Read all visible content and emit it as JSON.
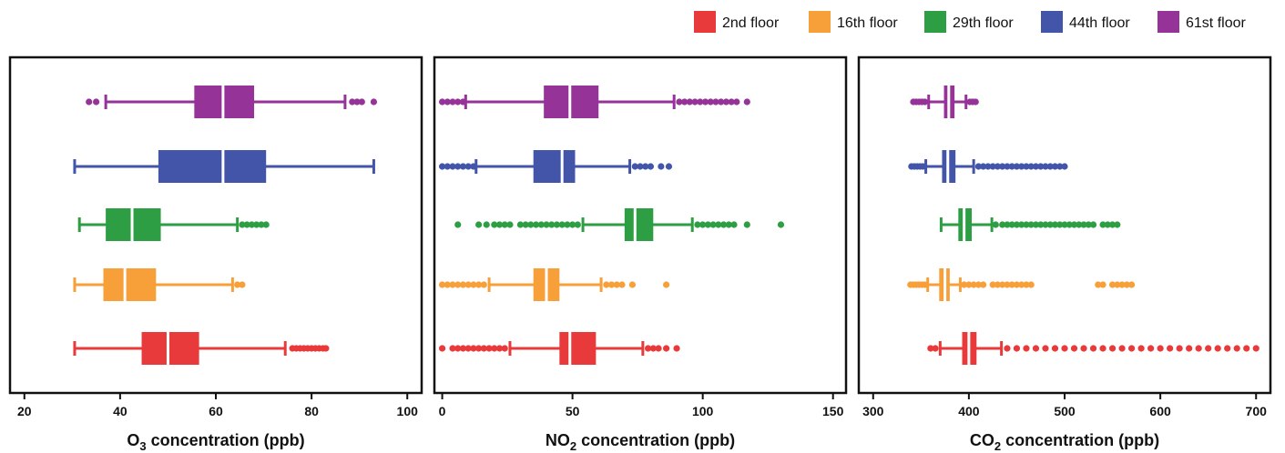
{
  "legend": {
    "position": "top-right",
    "items": [
      {
        "label": "2nd floor",
        "color": "#e83a3a"
      },
      {
        "label": "16th floor",
        "color": "#f7a03a"
      },
      {
        "label": "29th floor",
        "color": "#2e9e44"
      },
      {
        "label": "44th floor",
        "color": "#4255a8"
      },
      {
        "label": "61st floor",
        "color": "#953399"
      }
    ]
  },
  "chart_data": [
    {
      "type": "box",
      "xlabel": "O₃ concentration (ppb)",
      "xlim": [
        17,
        103
      ],
      "xticks": [
        20,
        40,
        60,
        80,
        100
      ],
      "series": [
        {
          "name": "2nd floor",
          "whislo": 30.5,
          "q1": 44.5,
          "med": 50,
          "q3": 56.5,
          "whishi": 74.5,
          "fliers": [
            76,
            76.8,
            77.6,
            78.4,
            79.2,
            80,
            80.8,
            81.6,
            82.4,
            83
          ]
        },
        {
          "name": "16th floor",
          "whislo": 30.5,
          "q1": 36.5,
          "med": 41,
          "q3": 47.5,
          "whishi": 63.5,
          "fliers": [
            64.5,
            65.5
          ]
        },
        {
          "name": "29th floor",
          "whislo": 31.5,
          "q1": 37,
          "med": 42.5,
          "q3": 48.5,
          "whishi": 64.5,
          "fliers": [
            65.5,
            66.5,
            67.5,
            68.5,
            69.5,
            70.5
          ]
        },
        {
          "name": "44th floor",
          "whislo": 30.5,
          "q1": 48,
          "med": 61.5,
          "q3": 70.5,
          "whishi": 93,
          "fliers": []
        },
        {
          "name": "61st floor",
          "whislo": 37,
          "q1": 55.5,
          "med": 61.5,
          "q3": 68,
          "whishi": 87,
          "fliers": [
            33.5,
            35,
            88.5,
            89.5,
            90.5,
            93
          ]
        }
      ]
    },
    {
      "type": "box",
      "xlabel": "NO₂ concentration (ppb)",
      "xlim": [
        -3,
        155
      ],
      "xticks": [
        0,
        50,
        100,
        150
      ],
      "series": [
        {
          "name": "2nd floor",
          "whislo": 26,
          "q1": 45,
          "med": 49,
          "q3": 59,
          "whishi": 77,
          "fliers": [
            0,
            4,
            6,
            8,
            10,
            12,
            14,
            16,
            18,
            20,
            22,
            24,
            79,
            81,
            83,
            86,
            90
          ]
        },
        {
          "name": "16th floor",
          "whislo": 18,
          "q1": 35,
          "med": 40,
          "q3": 45,
          "whishi": 61,
          "fliers": [
            0,
            2,
            4,
            6,
            8,
            10,
            12,
            14,
            16,
            63,
            65,
            67,
            69,
            73,
            86
          ]
        },
        {
          "name": "29th floor",
          "whislo": 54,
          "q1": 70,
          "med": 74,
          "q3": 81,
          "whishi": 96,
          "fliers": [
            6,
            14,
            17,
            20,
            22,
            24,
            26,
            30,
            32,
            34,
            36,
            38,
            40,
            42,
            44,
            46,
            48,
            50,
            52,
            98,
            100,
            102,
            104,
            106,
            108,
            110,
            112,
            117,
            130
          ]
        },
        {
          "name": "44th floor",
          "whislo": 13,
          "q1": 35,
          "med": 46,
          "q3": 51,
          "whishi": 72,
          "fliers": [
            0,
            2,
            4,
            6,
            8,
            10,
            12,
            74,
            76,
            78,
            80,
            84,
            87
          ]
        },
        {
          "name": "61st floor",
          "whislo": 9,
          "q1": 39,
          "med": 49,
          "q3": 60,
          "whishi": 89,
          "fliers": [
            0,
            2,
            4,
            6,
            8,
            91,
            93,
            95,
            97,
            99,
            101,
            103,
            105,
            107,
            109,
            111,
            113,
            117
          ]
        }
      ]
    },
    {
      "type": "box",
      "xlabel": "CO₂ concentration (ppb)",
      "xlim": [
        285,
        715
      ],
      "xticks": [
        300,
        400,
        500,
        600,
        700
      ],
      "series": [
        {
          "name": "2nd floor",
          "whislo": 370,
          "q1": 393,
          "med": 400,
          "q3": 408,
          "whishi": 434,
          "fliers": [
            360,
            365,
            440,
            450,
            460,
            470,
            480,
            490,
            500,
            510,
            520,
            530,
            540,
            550,
            560,
            570,
            580,
            590,
            600,
            610,
            620,
            630,
            640,
            650,
            660,
            670,
            680,
            690,
            700
          ]
        },
        {
          "name": "16th floor",
          "whislo": 357,
          "q1": 369,
          "med": 375,
          "q3": 380,
          "whishi": 391,
          "fliers": [
            339,
            342,
            345,
            348,
            351,
            354,
            395,
            400,
            405,
            410,
            415,
            425,
            430,
            435,
            440,
            445,
            450,
            455,
            460,
            465,
            535,
            540,
            550,
            555,
            560,
            565,
            570
          ]
        },
        {
          "name": "29th floor",
          "whislo": 371,
          "q1": 389,
          "med": 395,
          "q3": 403,
          "whishi": 424,
          "fliers": [
            428,
            435,
            440,
            445,
            450,
            455,
            460,
            465,
            470,
            475,
            480,
            485,
            490,
            495,
            500,
            505,
            510,
            515,
            520,
            525,
            530,
            540,
            545,
            550,
            555
          ]
        },
        {
          "name": "44th floor",
          "whislo": 355,
          "q1": 372,
          "med": 378,
          "q3": 386,
          "whishi": 405,
          "fliers": [
            340,
            343,
            346,
            349,
            352,
            410,
            415,
            420,
            425,
            430,
            435,
            440,
            445,
            450,
            455,
            460,
            465,
            470,
            475,
            480,
            485,
            490,
            495,
            500
          ]
        },
        {
          "name": "61st floor",
          "whislo": 358,
          "q1": 374,
          "med": 379,
          "q3": 385,
          "whishi": 397,
          "fliers": [
            342,
            345,
            348,
            351,
            354,
            401,
            404,
            407
          ]
        }
      ]
    }
  ]
}
